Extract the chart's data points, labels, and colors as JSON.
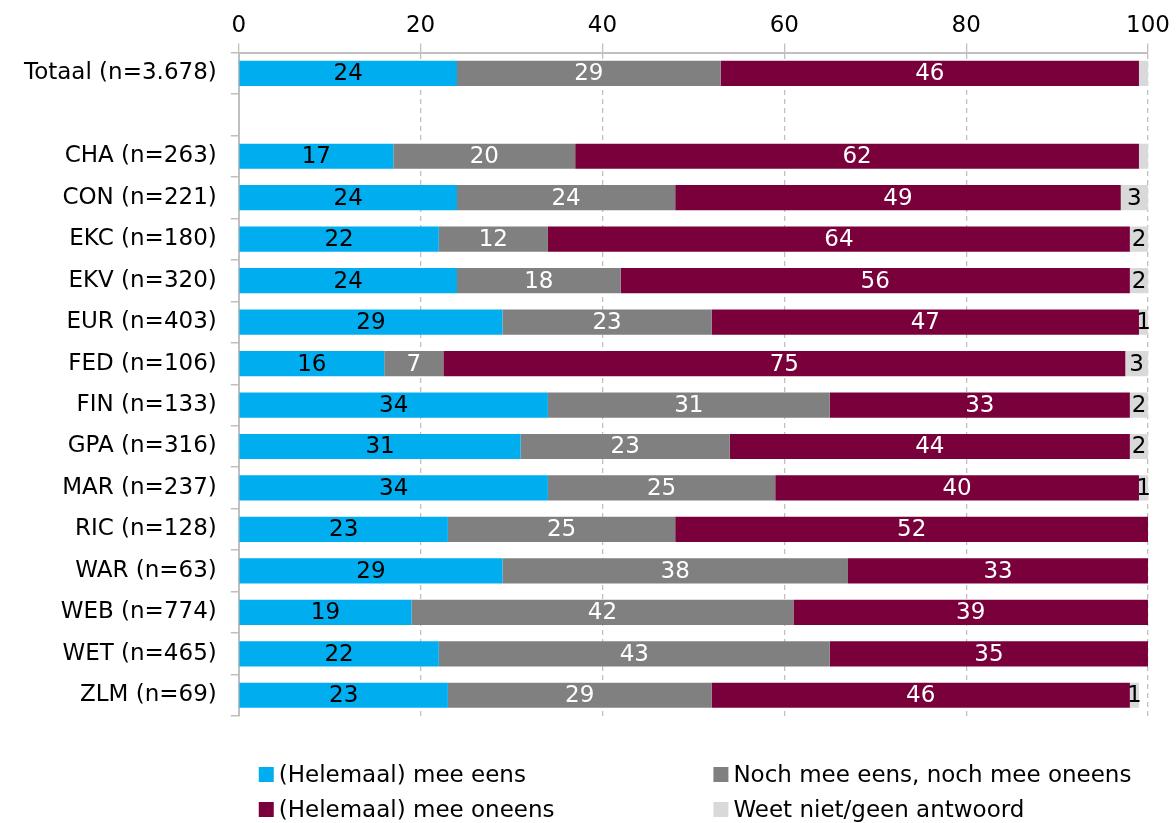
{
  "chart_data": {
    "type": "bar",
    "orientation": "horizontal",
    "stacked": true,
    "categories": [
      "Totaal (n=3.678)",
      null,
      "CHA (n=263)",
      "CON (n=221)",
      "EKC (n=180)",
      "EKV (n=320)",
      "EUR (n=403)",
      "FED (n=106)",
      "FIN (n=133)",
      "GPA (n=316)",
      "MAR (n=237)",
      "RIC (n=128)",
      "WAR (n=63)",
      "WEB (n=774)",
      "WET (n=465)",
      "ZLM (n=69)"
    ],
    "series": [
      {
        "name": "(Helemaal) mee eens",
        "color": "#00adef",
        "values": [
          24,
          null,
          17,
          24,
          22,
          24,
          29,
          16,
          34,
          31,
          34,
          23,
          29,
          19,
          22,
          23
        ],
        "value_labels": [
          "24",
          null,
          "17",
          "24",
          "22",
          "24",
          "29",
          "16",
          "34",
          "31",
          "34",
          "23",
          "29",
          "19",
          "22",
          "23"
        ]
      },
      {
        "name": "Noch mee eens, noch mee oneens",
        "color": "#808080",
        "values": [
          29,
          null,
          20,
          24,
          12,
          18,
          23,
          6.5,
          31,
          23,
          25,
          25,
          38,
          42,
          43,
          29
        ],
        "value_labels": [
          "29",
          null,
          "20",
          "24",
          "12",
          "18",
          "23",
          "7",
          "31",
          "23",
          "25",
          "25",
          "38",
          "42",
          "43",
          "29"
        ]
      },
      {
        "name": "(Helemaal) mee oneens",
        "color": "#7a003c",
        "values": [
          46,
          null,
          62,
          49,
          64,
          56,
          47,
          75,
          33,
          44,
          40,
          52,
          33,
          39,
          35,
          46
        ],
        "value_labels": [
          "46",
          null,
          "62",
          "49",
          "64",
          "56",
          "47",
          "75",
          "33",
          "44",
          "40",
          "52",
          "33",
          "39",
          "35",
          "46"
        ]
      },
      {
        "name": "Weet niet/geen antwoord",
        "color": "#d9d9d9",
        "values": [
          1,
          null,
          1,
          3,
          2,
          2,
          1,
          2.5,
          2,
          2,
          1,
          null,
          null,
          null,
          null,
          1
        ],
        "value_labels": [
          null,
          null,
          null,
          "3",
          "2",
          "2",
          "1",
          "3",
          "2",
          "2",
          "1",
          null,
          null,
          null,
          null,
          "1"
        ]
      }
    ],
    "xlim": [
      0,
      100
    ],
    "xticks": [
      0,
      20,
      40,
      60,
      80,
      100
    ],
    "grid": "x",
    "legend": "bottom"
  }
}
